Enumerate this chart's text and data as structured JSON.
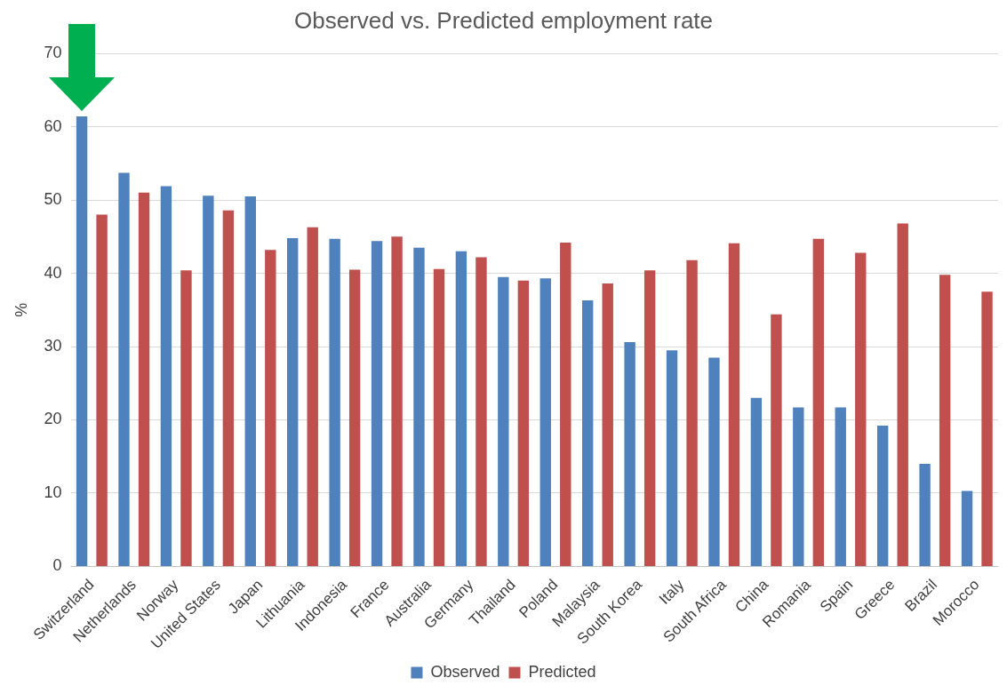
{
  "chart_data": {
    "type": "bar",
    "title": "Observed vs. Predicted employment rate",
    "ylabel": "%",
    "categories": [
      "Switzerland",
      "Netherlands",
      "Norway",
      "United States",
      "Japan",
      "Lithuania",
      "Indonesia",
      "France",
      "Australia",
      "Germany",
      "Thailand",
      "Poland",
      "Malaysia",
      "South Korea",
      "Italy",
      "South Africa",
      "China",
      "Romania",
      "Spain",
      "Greece",
      "Brazil",
      "Morocco"
    ],
    "series": [
      {
        "name": "Observed",
        "color": "#4f81bd",
        "values": [
          61.4,
          53.7,
          51.9,
          50.6,
          50.5,
          44.8,
          44.7,
          44.4,
          43.5,
          43.0,
          39.5,
          39.3,
          36.3,
          30.6,
          29.5,
          28.5,
          23.0,
          21.7,
          21.7,
          19.2,
          14.0,
          10.3
        ]
      },
      {
        "name": "Predicted",
        "color": "#c0504d",
        "values": [
          48.0,
          51.0,
          40.4,
          48.6,
          43.2,
          46.3,
          40.5,
          45.0,
          40.6,
          42.2,
          39.0,
          44.2,
          38.6,
          40.4,
          41.8,
          44.1,
          34.4,
          44.7,
          42.8,
          46.8,
          39.8,
          37.5
        ]
      }
    ],
    "ylim": [
      0,
      70
    ],
    "yticks": [
      0,
      10,
      20,
      30,
      40,
      50,
      60,
      70
    ],
    "grid": "y",
    "legend": "bottom"
  }
}
